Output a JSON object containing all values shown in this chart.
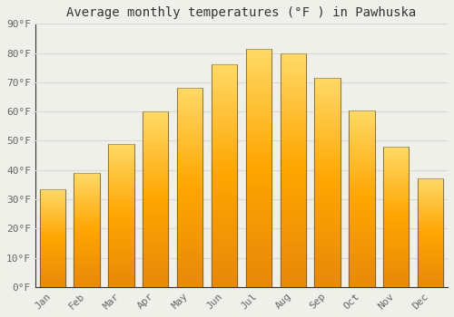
{
  "title": "Average monthly temperatures (°F ) in Pawhuska",
  "months": [
    "Jan",
    "Feb",
    "Mar",
    "Apr",
    "May",
    "Jun",
    "Jul",
    "Aug",
    "Sep",
    "Oct",
    "Nov",
    "Dec"
  ],
  "values": [
    33.5,
    39.0,
    49.0,
    60.0,
    68.0,
    76.0,
    81.5,
    80.0,
    71.5,
    60.5,
    48.0,
    37.0
  ],
  "bar_color_bottom": "#E8880A",
  "bar_color_top": "#FFD966",
  "bar_color_mid": "#FFA500",
  "ylim": [
    0,
    90
  ],
  "yticks": [
    0,
    10,
    20,
    30,
    40,
    50,
    60,
    70,
    80,
    90
  ],
  "ytick_labels": [
    "0°F",
    "10°F",
    "20°F",
    "30°F",
    "40°F",
    "50°F",
    "60°F",
    "70°F",
    "80°F",
    "90°F"
  ],
  "background_color": "#f0f0eb",
  "grid_color": "#d8d8d8",
  "title_fontsize": 10,
  "tick_fontsize": 8,
  "font_family": "monospace",
  "tick_color": "#666666",
  "spine_color": "#333333"
}
